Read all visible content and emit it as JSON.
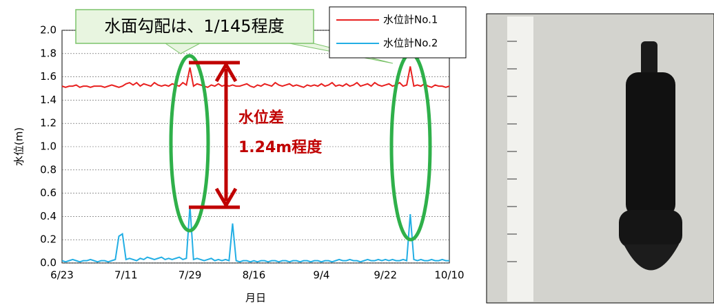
{
  "chart_data": {
    "type": "line",
    "ylabel": "水位(m)",
    "xlabel": "月日",
    "annotations": [
      "水面勾配は、1/145程度",
      "水位差",
      "1.24m程度"
    ],
    "categories": [
      "6/23",
      null,
      null,
      null,
      null,
      null,
      null,
      null,
      null,
      null,
      null,
      null,
      null,
      null,
      null,
      null,
      null,
      null,
      "7/11",
      null,
      null,
      null,
      null,
      null,
      null,
      null,
      null,
      null,
      null,
      null,
      null,
      null,
      null,
      null,
      null,
      null,
      "7/29",
      null,
      null,
      null,
      null,
      null,
      null,
      null,
      null,
      null,
      null,
      null,
      null,
      null,
      null,
      null,
      null,
      null,
      "8/16",
      null,
      null,
      null,
      null,
      null,
      null,
      null,
      null,
      null,
      null,
      null,
      null,
      null,
      null,
      null,
      null,
      null,
      null,
      "9/4",
      null,
      null,
      null,
      null,
      null,
      null,
      null,
      null,
      null,
      null,
      null,
      null,
      null,
      null,
      null,
      null,
      null,
      "9/22",
      null,
      null,
      null,
      null,
      null,
      null,
      null,
      null,
      null,
      null,
      null,
      null,
      null,
      null,
      null,
      null,
      null,
      "10/10"
    ],
    "series": [
      {
        "name": "水位計No.1",
        "color": "#e8201f",
        "values": [
          1.52,
          1.51,
          1.52,
          1.52,
          1.53,
          1.51,
          1.52,
          1.52,
          1.51,
          1.52,
          1.52,
          1.52,
          1.51,
          1.52,
          1.53,
          1.52,
          1.51,
          1.52,
          1.54,
          1.55,
          1.53,
          1.55,
          1.52,
          1.54,
          1.53,
          1.52,
          1.55,
          1.53,
          1.52,
          1.53,
          1.52,
          1.54,
          1.53,
          1.52,
          1.55,
          1.53,
          1.68,
          1.52,
          1.54,
          1.53,
          1.52,
          1.51,
          1.53,
          1.52,
          1.54,
          1.52,
          1.53,
          1.52,
          1.53,
          1.52,
          1.52,
          1.53,
          1.54,
          1.52,
          1.51,
          1.53,
          1.52,
          1.54,
          1.53,
          1.52,
          1.55,
          1.53,
          1.52,
          1.53,
          1.54,
          1.52,
          1.53,
          1.52,
          1.51,
          1.53,
          1.52,
          1.53,
          1.52,
          1.54,
          1.52,
          1.53,
          1.55,
          1.52,
          1.53,
          1.52,
          1.54,
          1.52,
          1.53,
          1.55,
          1.52,
          1.53,
          1.54,
          1.52,
          1.55,
          1.53,
          1.52,
          1.53,
          1.54,
          1.52,
          1.53,
          1.55,
          1.52,
          1.53,
          1.69,
          1.52,
          1.53,
          1.52,
          1.54,
          1.52,
          1.51,
          1.53,
          1.52,
          1.52,
          1.51,
          1.52
        ]
      },
      {
        "name": "水位計No.2",
        "color": "#22aee4",
        "values": [
          0.02,
          0.01,
          0.02,
          0.03,
          0.02,
          0.01,
          0.02,
          0.02,
          0.03,
          0.02,
          0.01,
          0.02,
          0.02,
          0.01,
          0.02,
          0.03,
          0.23,
          0.25,
          0.03,
          0.04,
          0.03,
          0.02,
          0.04,
          0.03,
          0.05,
          0.04,
          0.03,
          0.04,
          0.05,
          0.03,
          0.04,
          0.03,
          0.04,
          0.05,
          0.03,
          0.04,
          0.49,
          0.03,
          0.04,
          0.03,
          0.02,
          0.03,
          0.04,
          0.02,
          0.03,
          0.02,
          0.03,
          0.02,
          0.34,
          0.02,
          0.01,
          0.02,
          0.02,
          0.01,
          0.02,
          0.01,
          0.02,
          0.02,
          0.01,
          0.02,
          0.02,
          0.01,
          0.02,
          0.02,
          0.01,
          0.02,
          0.02,
          0.01,
          0.02,
          0.02,
          0.01,
          0.02,
          0.02,
          0.01,
          0.02,
          0.02,
          0.01,
          0.02,
          0.03,
          0.02,
          0.02,
          0.03,
          0.02,
          0.02,
          0.01,
          0.02,
          0.03,
          0.02,
          0.02,
          0.03,
          0.02,
          0.03,
          0.02,
          0.03,
          0.02,
          0.02,
          0.03,
          0.02,
          0.42,
          0.03,
          0.02,
          0.03,
          0.02,
          0.02,
          0.03,
          0.02,
          0.02,
          0.03,
          0.02,
          0.02
        ]
      }
    ],
    "ylim": [
      0,
      2
    ],
    "yticks": [
      {
        "value": 0,
        "label": "0.0"
      },
      {
        "value": 0.2,
        "label": "0.2"
      },
      {
        "value": 0.4,
        "label": "0.4"
      },
      {
        "value": 0.6,
        "label": "0.6"
      },
      {
        "value": 0.8,
        "label": "0.8"
      },
      {
        "value": 1,
        "label": "1.0"
      },
      {
        "value": 1.2,
        "label": "1.2"
      },
      {
        "value": 1.4,
        "label": "1.4"
      },
      {
        "value": 1.6,
        "label": "1.6"
      },
      {
        "value": 1.8,
        "label": "1.8"
      },
      {
        "value": 2,
        "label": "2.0"
      }
    ],
    "grid": true
  }
}
